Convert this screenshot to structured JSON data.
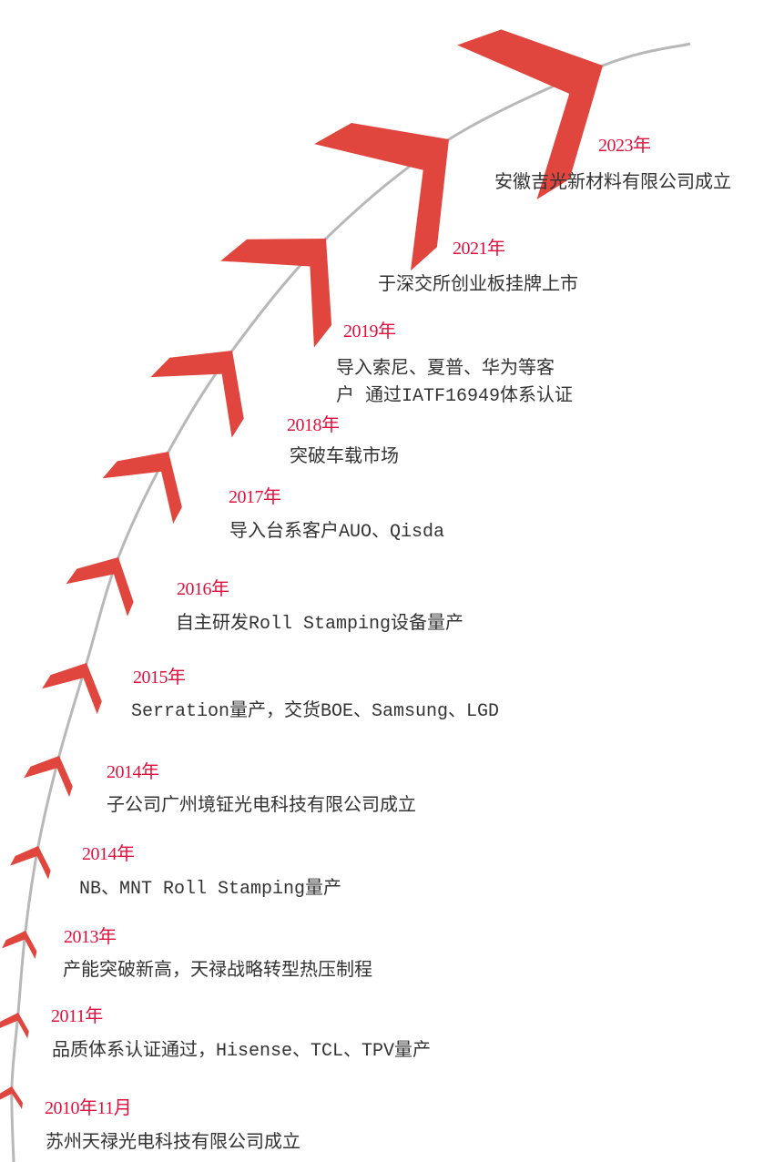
{
  "colors": {
    "accent": "#e0463e",
    "year": "#e0103c",
    "line": "#b8b8b8",
    "text": "#333333"
  },
  "events": [
    {
      "year": "2010年11月",
      "lines": [
        "苏州天禄光电科技有限公司成立"
      ]
    },
    {
      "year": "2011年",
      "lines": [
        "品质体系认证通过，Hisense、TCL、TPV量产"
      ]
    },
    {
      "year": "2013年",
      "lines": [
        "产能突破新高，天禄战略转型热压制程"
      ]
    },
    {
      "year": "2014年",
      "lines": [
        "NB、MNT Roll Stamping量产"
      ]
    },
    {
      "year": "2014年",
      "lines": [
        "子公司广州境钲光电科技有限公司成立"
      ]
    },
    {
      "year": "2015年",
      "lines": [
        "Serration量产，交货BOE、Samsung、LGD"
      ]
    },
    {
      "year": "2016年",
      "lines": [
        "自主研发Roll Stamping设备量产"
      ]
    },
    {
      "year": "2017年",
      "lines": [
        "导入台系客户AUO、Qisda"
      ]
    },
    {
      "year": "2018年",
      "lines": [
        "突破车载市场"
      ]
    },
    {
      "year": "2019年",
      "lines": [
        "导入索尼、夏普、华为等客",
        "户 通过IATF16949体系认证"
      ]
    },
    {
      "year": "2021年",
      "lines": [
        "于深交所创业板挂牌上市"
      ]
    },
    {
      "year": "2023年",
      "lines": [
        "安徽吉光新材料有限公司成立"
      ]
    }
  ]
}
